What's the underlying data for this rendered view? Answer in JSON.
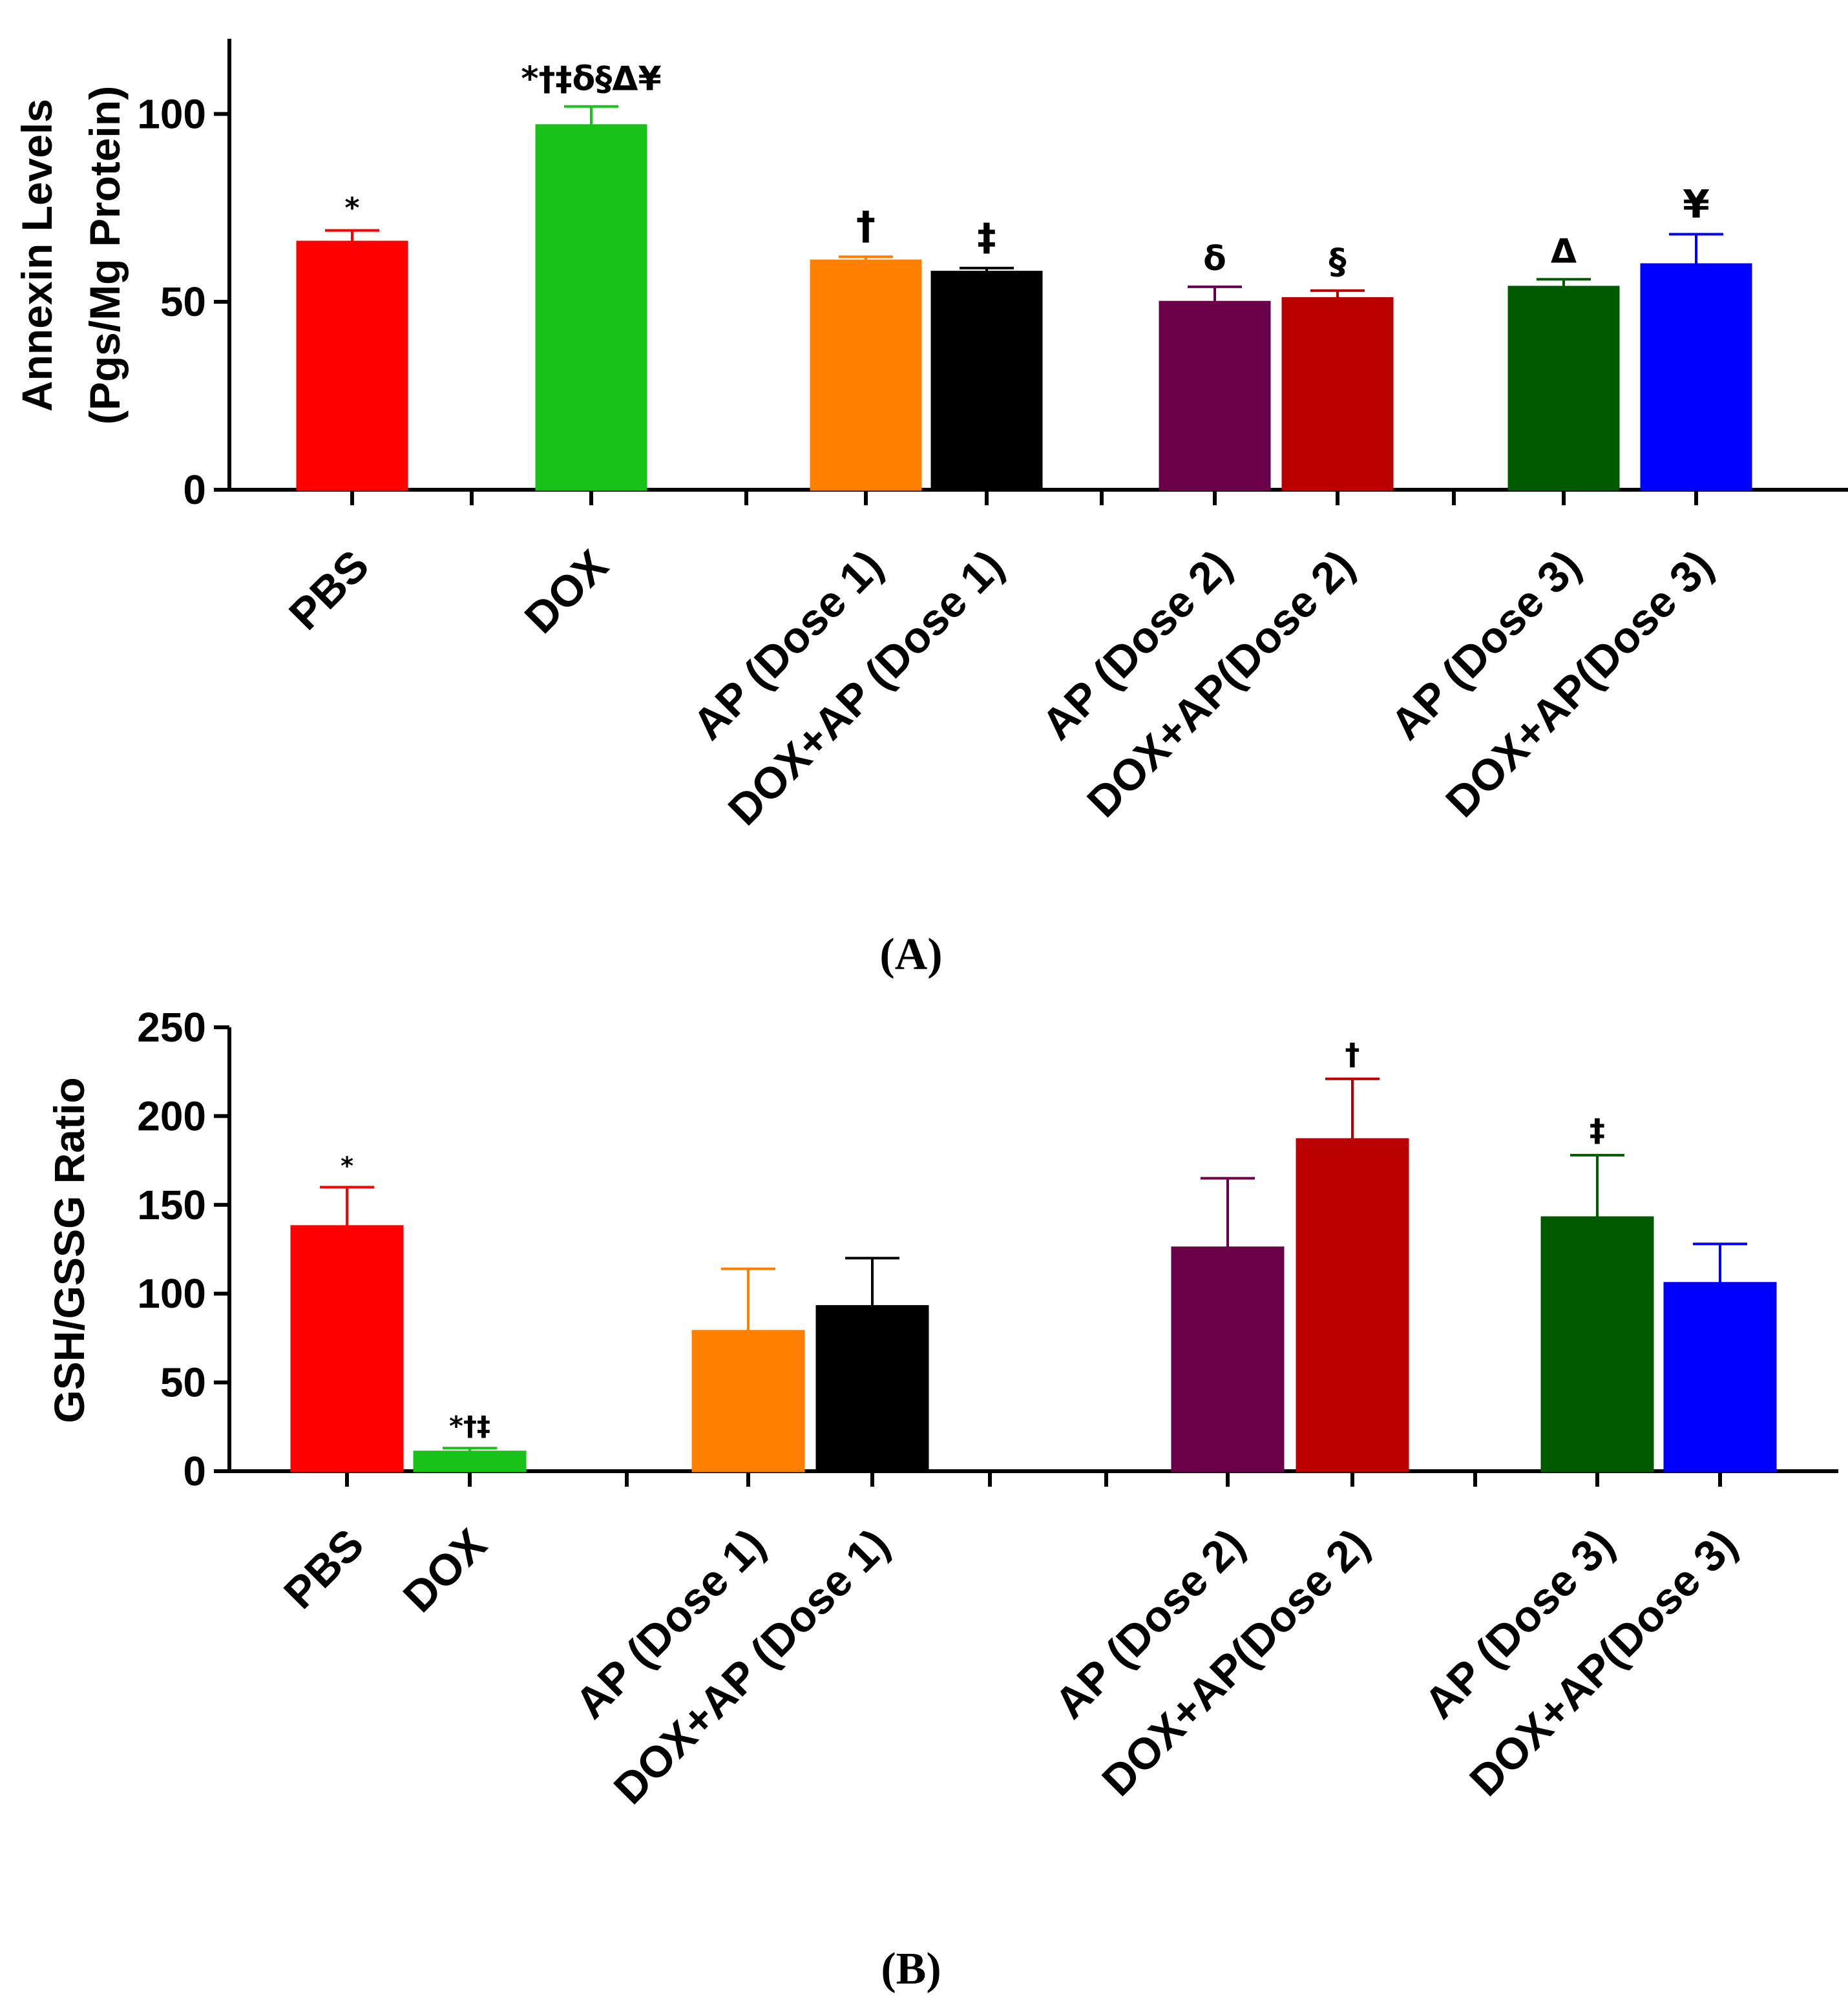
{
  "chart_data": [
    {
      "type": "bar",
      "panel_label": "(A)",
      "ylabel": [
        "Annexin Levels",
        "(Pgs/Mg Protein)"
      ],
      "ylim": [
        0,
        120
      ],
      "yticks": [
        0,
        50,
        100
      ],
      "categories": [
        "PBS",
        "DOX",
        "AP (Dose 1)",
        "DOX+AP (Dose 1)",
        "AP (Dose 2)",
        "DOX+AP(Dose 2)",
        "AP (Dose 3)",
        "DOX+AP(Dose 3)"
      ],
      "values": [
        66,
        97,
        61,
        58,
        50,
        51,
        54,
        60
      ],
      "errors": [
        3,
        5,
        1,
        1,
        4,
        2,
        2,
        8
      ],
      "colors": [
        "#ff0000",
        "#19c219",
        "#ff8000",
        "#000000",
        "#6a0047",
        "#bb0000",
        "#005a00",
        "#0000ff"
      ],
      "annotations": [
        "*",
        "*†‡δ§Δ¥",
        "†",
        "‡",
        "δ",
        "§",
        "Δ",
        "¥"
      ]
    },
    {
      "type": "bar",
      "panel_label": "(B)",
      "ylabel": [
        "GSH/GSSG Ratio"
      ],
      "ylim": [
        0,
        250
      ],
      "yticks": [
        0,
        50,
        100,
        150,
        200,
        250
      ],
      "categories": [
        "PBS",
        "DOX",
        "AP (Dose 1)",
        "DOX+AP (Dose 1)",
        "AP (Dose 2)",
        "DOX+AP(Dose 2)",
        "AP (Dose 3)",
        "DOX+AP(Dose 3)"
      ],
      "values": [
        138,
        11,
        79,
        93,
        126,
        187,
        143,
        106
      ],
      "errors": [
        22,
        2,
        35,
        27,
        39,
        34,
        35,
        22
      ],
      "colors": [
        "#ff0000",
        "#19c219",
        "#ff8000",
        "#000000",
        "#6a0047",
        "#bb0000",
        "#005a00",
        "#0000ff"
      ],
      "annotations": [
        "*",
        "*†‡",
        "",
        "",
        "",
        "†",
        "‡",
        ""
      ]
    }
  ]
}
